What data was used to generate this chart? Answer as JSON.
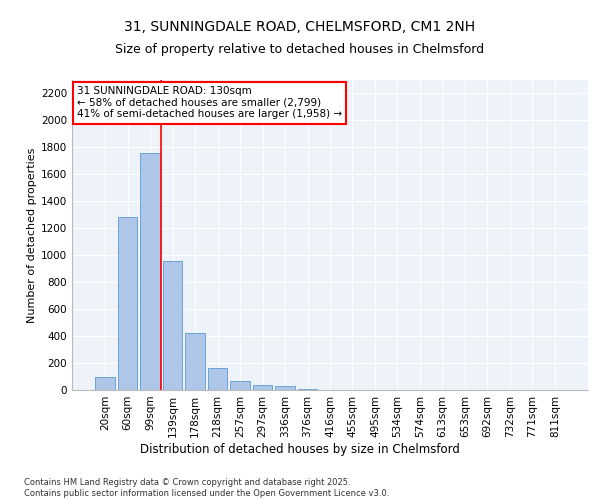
{
  "title": "31, SUNNINGDALE ROAD, CHELMSFORD, CM1 2NH",
  "subtitle": "Size of property relative to detached houses in Chelmsford",
  "xlabel": "Distribution of detached houses by size in Chelmsford",
  "ylabel": "Number of detached properties",
  "categories": [
    "20sqm",
    "60sqm",
    "99sqm",
    "139sqm",
    "178sqm",
    "218sqm",
    "257sqm",
    "297sqm",
    "336sqm",
    "376sqm",
    "416sqm",
    "455sqm",
    "495sqm",
    "534sqm",
    "574sqm",
    "613sqm",
    "653sqm",
    "692sqm",
    "732sqm",
    "771sqm",
    "811sqm"
  ],
  "values": [
    100,
    1280,
    1760,
    960,
    420,
    160,
    65,
    40,
    30,
    5,
    3,
    1,
    0,
    0,
    0,
    0,
    0,
    0,
    0,
    0,
    0
  ],
  "bar_color": "#aec6e8",
  "bar_edge_color": "#5b9bd5",
  "vline_x": 2.5,
  "vline_color": "#ff0000",
  "annotation_line1": "31 SUNNINGDALE ROAD: 130sqm",
  "annotation_line2": "← 58% of detached houses are smaller (2,799)",
  "annotation_line3": "41% of semi-detached houses are larger (1,958) →",
  "annotation_box_color": "#ffffff",
  "annotation_box_edge_color": "#ff0000",
  "ylim": [
    0,
    2300
  ],
  "yticks": [
    0,
    200,
    400,
    600,
    800,
    1000,
    1200,
    1400,
    1600,
    1800,
    2000,
    2200
  ],
  "bg_color": "#eef3f9",
  "footer_line1": "Contains HM Land Registry data © Crown copyright and database right 2025.",
  "footer_line2": "Contains public sector information licensed under the Open Government Licence v3.0.",
  "title_fontsize": 10,
  "subtitle_fontsize": 9,
  "xlabel_fontsize": 8.5,
  "ylabel_fontsize": 8,
  "tick_fontsize": 7.5,
  "annotation_fontsize": 7.5,
  "footer_fontsize": 6
}
